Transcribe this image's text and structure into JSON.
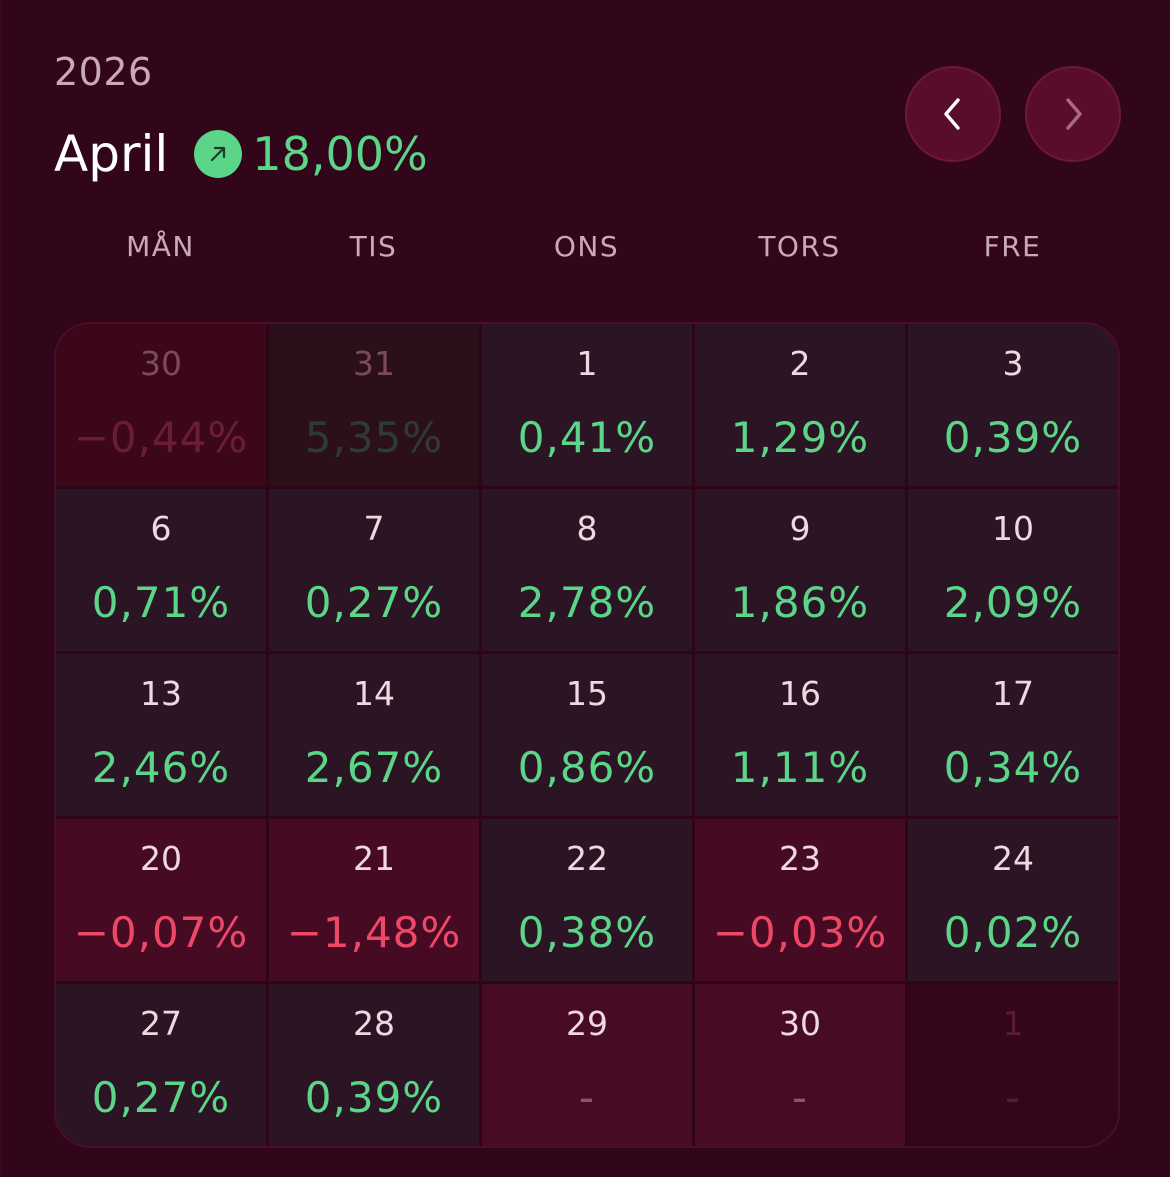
{
  "header": {
    "year": "2026",
    "month": "April",
    "month_change": "18,00%",
    "trend_icon": "arrow-up-right-icon",
    "colors": {
      "positive": "#5bd588",
      "negative": "#ee4868",
      "background": "#32061a"
    }
  },
  "nav": {
    "prev_icon": "chevron-left-icon",
    "next_icon": "chevron-right-icon"
  },
  "weekdays": [
    "MÅN",
    "TIS",
    "ONS",
    "TORS",
    "FRE"
  ],
  "days": [
    {
      "day": "30",
      "pct": "−0,44%",
      "state": "outside-neg"
    },
    {
      "day": "31",
      "pct": "5,35%",
      "state": "outside-pos"
    },
    {
      "day": "1",
      "pct": "0,41%",
      "state": "pos"
    },
    {
      "day": "2",
      "pct": "1,29%",
      "state": "pos"
    },
    {
      "day": "3",
      "pct": "0,39%",
      "state": "pos"
    },
    {
      "day": "6",
      "pct": "0,71%",
      "state": "pos"
    },
    {
      "day": "7",
      "pct": "0,27%",
      "state": "pos"
    },
    {
      "day": "8",
      "pct": "2,78%",
      "state": "pos"
    },
    {
      "day": "9",
      "pct": "1,86%",
      "state": "pos"
    },
    {
      "day": "10",
      "pct": "2,09%",
      "state": "pos"
    },
    {
      "day": "13",
      "pct": "2,46%",
      "state": "pos"
    },
    {
      "day": "14",
      "pct": "2,67%",
      "state": "pos"
    },
    {
      "day": "15",
      "pct": "0,86%",
      "state": "pos"
    },
    {
      "day": "16",
      "pct": "1,11%",
      "state": "pos"
    },
    {
      "day": "17",
      "pct": "0,34%",
      "state": "pos"
    },
    {
      "day": "20",
      "pct": "−0,07%",
      "state": "neg"
    },
    {
      "day": "21",
      "pct": "−1,48%",
      "state": "neg"
    },
    {
      "day": "22",
      "pct": "0,38%",
      "state": "pos"
    },
    {
      "day": "23",
      "pct": "−0,03%",
      "state": "neg"
    },
    {
      "day": "24",
      "pct": "0,02%",
      "state": "pos"
    },
    {
      "day": "27",
      "pct": "0,27%",
      "state": "pos"
    },
    {
      "day": "28",
      "pct": "0,39%",
      "state": "pos"
    },
    {
      "day": "29",
      "pct": "-",
      "state": "empty"
    },
    {
      "day": "30",
      "pct": "-",
      "state": "empty"
    },
    {
      "day": "1",
      "pct": "-",
      "state": "outside-empty"
    }
  ]
}
